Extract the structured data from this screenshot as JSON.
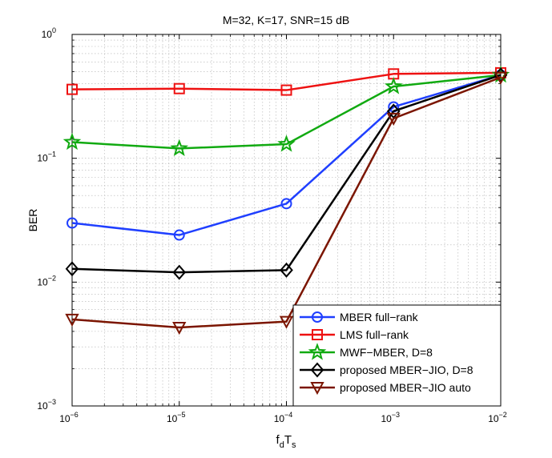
{
  "chart_data": {
    "type": "line",
    "title": "M=32, K=17, SNR=15 dB",
    "xlabel": {
      "main": "f",
      "sub1": "d",
      "mid": "T",
      "sub2": "s"
    },
    "ylabel": "BER",
    "xscale": "log",
    "yscale": "log",
    "xlim": [
      1e-06,
      0.01
    ],
    "ylim": [
      0.001,
      1
    ],
    "grid": true,
    "legend_position": "bottom-right",
    "x": [
      1e-06,
      1e-05,
      0.0001,
      0.001,
      0.01
    ],
    "x_ticks": [
      {
        "value": 1e-06,
        "base": "10",
        "exp": "−6"
      },
      {
        "value": 1e-05,
        "base": "10",
        "exp": "−5"
      },
      {
        "value": 0.0001,
        "base": "10",
        "exp": "−4"
      },
      {
        "value": 0.001,
        "base": "10",
        "exp": "−3"
      },
      {
        "value": 0.01,
        "base": "10",
        "exp": "−2"
      }
    ],
    "y_ticks": [
      {
        "value": 0.001,
        "base": "10",
        "exp": "−3"
      },
      {
        "value": 0.01,
        "base": "10",
        "exp": "−2"
      },
      {
        "value": 0.1,
        "base": "10",
        "exp": "−1"
      },
      {
        "value": 1,
        "base": "10",
        "exp": "0"
      }
    ],
    "series": [
      {
        "name": "MBER full−rank",
        "color": "#1f3fff",
        "marker": "circle",
        "values": [
          0.03,
          0.024,
          0.043,
          0.26,
          0.47
        ]
      },
      {
        "name": "LMS full−rank",
        "color": "#ee1111",
        "marker": "square",
        "values": [
          0.36,
          0.365,
          0.355,
          0.48,
          0.49
        ]
      },
      {
        "name": "MWF−MBER, D=8",
        "color": "#11aa11",
        "marker": "star",
        "values": [
          0.135,
          0.12,
          0.13,
          0.38,
          0.47
        ]
      },
      {
        "name": "proposed MBER−JIO, D=8",
        "color": "#000000",
        "marker": "diamond",
        "values": [
          0.0128,
          0.012,
          0.0125,
          0.24,
          0.47
        ]
      },
      {
        "name": "proposed MBER−JIO auto",
        "color": "#7b1500",
        "marker": "triangle-down",
        "values": [
          0.005,
          0.0043,
          0.0048,
          0.21,
          0.45
        ]
      }
    ]
  }
}
